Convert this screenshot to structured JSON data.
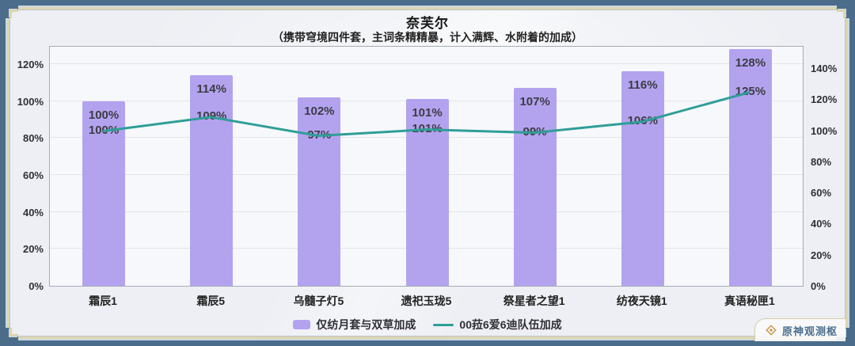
{
  "watermark": {
    "label": "原神观测枢"
  },
  "chart_data": {
    "type": "bar",
    "title": "奈芙尔",
    "subtitle": "（携带穹境四件套，主词条精精暴，计入满辉、水附着的加成）",
    "categories": [
      "霜辰1",
      "霜辰5",
      "乌髓子灯5",
      "遗祀玉珑5",
      "祭星者之望1",
      "纺夜天镜1",
      "真语秘匣1"
    ],
    "series": [
      {
        "name": "仅纺月套与双草加成",
        "type": "bar",
        "axis": "left",
        "color": "#b3a3ef",
        "values": [
          100,
          114,
          102,
          101,
          107,
          116,
          128
        ]
      },
      {
        "name": "00菈6爱6迪队伍加成",
        "type": "line",
        "axis": "right",
        "color": "#2f9e98",
        "values": [
          100,
          109,
          97,
          101,
          99,
          106,
          125
        ]
      }
    ],
    "left_axis": {
      "min": 0,
      "max": 130,
      "step": 20,
      "ticks": [
        "0%",
        "20%",
        "40%",
        "60%",
        "80%",
        "100%",
        "120%"
      ]
    },
    "right_axis": {
      "min": 0,
      "max": 153,
      "step": 20,
      "ticks": [
        "0%",
        "20%",
        "40%",
        "60%",
        "80%",
        "100%",
        "120%",
        "140%"
      ]
    },
    "grid": true,
    "legend_position": "bottom",
    "value_suffix": "%"
  }
}
